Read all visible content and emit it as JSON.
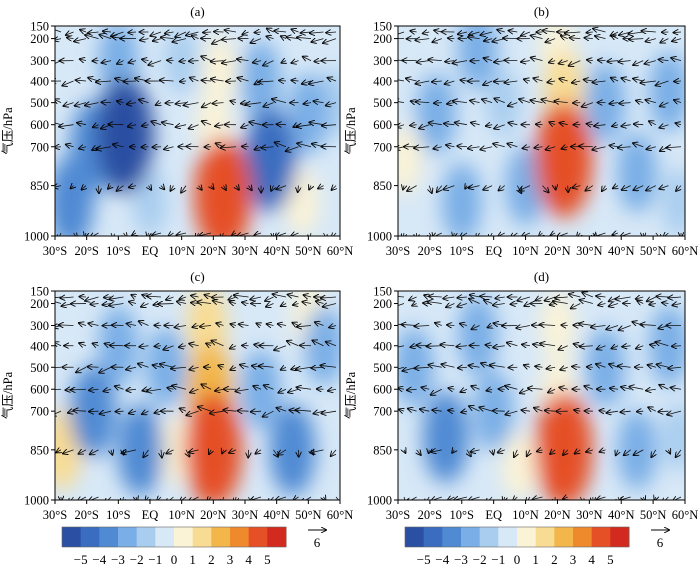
{
  "chart_data": [
    {
      "type": "heatmap",
      "panel_label": "(a)",
      "ylabel": "气压/hPa",
      "x_ticks": [
        "30°S",
        "20°S",
        "10°S",
        "EQ",
        "10°N",
        "20°N",
        "30°N",
        "40°N",
        "50°N",
        "60°N"
      ],
      "y_ticks": [
        "150",
        "200",
        "300",
        "400",
        "500",
        "600",
        "700",
        "850",
        "1000"
      ],
      "x_range": [
        -30,
        60
      ],
      "y_range_hPa": [
        1000,
        150
      ],
      "anomalies": [
        {
          "lat": -18,
          "p": 700,
          "value": -3
        },
        {
          "lat": -8,
          "p": 650,
          "value": -5
        },
        {
          "lat": -25,
          "p": 900,
          "value": -3
        },
        {
          "lat": -10,
          "p": 300,
          "value": -2
        },
        {
          "lat": 0,
          "p": 900,
          "value": -1
        },
        {
          "lat": 10,
          "p": 300,
          "value": -1
        },
        {
          "lat": 23,
          "p": 880,
          "value": 5
        },
        {
          "lat": 20,
          "p": 600,
          "value": 1
        },
        {
          "lat": 22,
          "p": 350,
          "value": 1
        },
        {
          "lat": 38,
          "p": 750,
          "value": -4
        },
        {
          "lat": 35,
          "p": 400,
          "value": -2
        },
        {
          "lat": 50,
          "p": 550,
          "value": -2
        },
        {
          "lat": 48,
          "p": 900,
          "value": 1
        },
        {
          "lat": 58,
          "p": 500,
          "value": -1
        }
      ]
    },
    {
      "type": "heatmap",
      "panel_label": "(b)",
      "ylabel": "气压/hPa",
      "x_ticks": [
        "30°S",
        "20°S",
        "10°S",
        "EQ",
        "10°N",
        "20°N",
        "30°N",
        "40°N",
        "50°N",
        "60°N"
      ],
      "y_ticks": [
        "150",
        "200",
        "300",
        "400",
        "500",
        "600",
        "700",
        "850",
        "1000"
      ],
      "x_range": [
        -30,
        60
      ],
      "y_range_hPa": [
        1000,
        150
      ],
      "anomalies": [
        {
          "lat": -28,
          "p": 750,
          "value": 1
        },
        {
          "lat": -18,
          "p": 550,
          "value": -2
        },
        {
          "lat": -10,
          "p": 900,
          "value": -2
        },
        {
          "lat": -5,
          "p": 250,
          "value": -2
        },
        {
          "lat": 3,
          "p": 500,
          "value": -1
        },
        {
          "lat": 10,
          "p": 850,
          "value": -2
        },
        {
          "lat": 22,
          "p": 750,
          "value": 5
        },
        {
          "lat": 22,
          "p": 450,
          "value": 2
        },
        {
          "lat": 20,
          "p": 250,
          "value": 1
        },
        {
          "lat": 35,
          "p": 500,
          "value": -2
        },
        {
          "lat": 45,
          "p": 800,
          "value": -2
        },
        {
          "lat": 55,
          "p": 450,
          "value": -2
        },
        {
          "lat": 58,
          "p": 900,
          "value": -1
        }
      ]
    },
    {
      "type": "heatmap",
      "panel_label": "(c)",
      "ylabel": "气压/hPa",
      "x_ticks": [
        "30°S",
        "20°S",
        "10°S",
        "EQ",
        "10°N",
        "20°N",
        "30°N",
        "40°N",
        "50°N",
        "60°N"
      ],
      "y_ticks": [
        "150",
        "200",
        "300",
        "400",
        "500",
        "600",
        "700",
        "850",
        "1000"
      ],
      "x_range": [
        -30,
        60
      ],
      "y_range_hPa": [
        1000,
        150
      ],
      "anomalies": [
        {
          "lat": -28,
          "p": 850,
          "value": 2
        },
        {
          "lat": -18,
          "p": 700,
          "value": -3
        },
        {
          "lat": -10,
          "p": 400,
          "value": -2
        },
        {
          "lat": -3,
          "p": 850,
          "value": -3
        },
        {
          "lat": 5,
          "p": 500,
          "value": -2
        },
        {
          "lat": 8,
          "p": 850,
          "value": 1
        },
        {
          "lat": 20,
          "p": 850,
          "value": 5
        },
        {
          "lat": 19,
          "p": 600,
          "value": 3
        },
        {
          "lat": 18,
          "p": 300,
          "value": 2
        },
        {
          "lat": 35,
          "p": 600,
          "value": -2
        },
        {
          "lat": 45,
          "p": 850,
          "value": -3
        },
        {
          "lat": 55,
          "p": 400,
          "value": -2
        },
        {
          "lat": 50,
          "p": 250,
          "value": 1
        }
      ]
    },
    {
      "type": "heatmap",
      "panel_label": "(d)",
      "ylabel": "气压/hPa",
      "x_ticks": [
        "30°S",
        "20°S",
        "10°S",
        "EQ",
        "10°N",
        "20°N",
        "30°N",
        "40°N",
        "50°N",
        "60°N"
      ],
      "y_ticks": [
        "150",
        "200",
        "300",
        "400",
        "500",
        "600",
        "700",
        "850",
        "1000"
      ],
      "x_range": [
        -30,
        60
      ],
      "y_range_hPa": [
        1000,
        150
      ],
      "anomalies": [
        {
          "lat": -25,
          "p": 500,
          "value": -2
        },
        {
          "lat": -15,
          "p": 800,
          "value": -3
        },
        {
          "lat": -5,
          "p": 350,
          "value": -2
        },
        {
          "lat": 0,
          "p": 700,
          "value": -2
        },
        {
          "lat": 8,
          "p": 900,
          "value": 1
        },
        {
          "lat": 22,
          "p": 850,
          "value": 5
        },
        {
          "lat": 20,
          "p": 600,
          "value": 1
        },
        {
          "lat": 20,
          "p": 300,
          "value": 1
        },
        {
          "lat": 35,
          "p": 500,
          "value": -2
        },
        {
          "lat": 45,
          "p": 850,
          "value": -2
        },
        {
          "lat": 55,
          "p": 400,
          "value": -2
        },
        {
          "lat": 58,
          "p": 800,
          "value": -1
        }
      ]
    }
  ],
  "colorbar": {
    "levels": [
      -5,
      -4,
      -3,
      -2,
      -1,
      0,
      1,
      2,
      3,
      4,
      5
    ],
    "tick_labels": [
      "−5",
      "−4",
      "−3",
      "−2",
      "−1",
      "0",
      "1",
      "2",
      "3",
      "4",
      "5"
    ],
    "colors": [
      "#2b4fa2",
      "#3a6dbf",
      "#4f8ad3",
      "#79aee6",
      "#a9cdef",
      "#d7e8f7",
      "#fbf3d6",
      "#f9dc93",
      "#f3b64a",
      "#ef8a2c",
      "#e55026",
      "#d32a1f"
    ]
  },
  "reference_vector": {
    "label": "6"
  }
}
